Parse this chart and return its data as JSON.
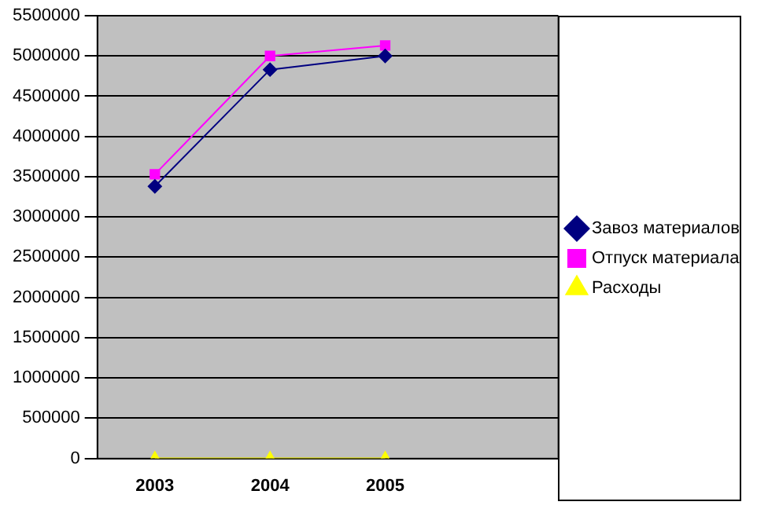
{
  "chart_data": {
    "type": "line",
    "categories": [
      "2003",
      "2004",
      "2005",
      null
    ],
    "series": [
      {
        "name": "Завоз материалов",
        "color": "#000080",
        "marker": "diamond",
        "values": [
          3380000,
          4830000,
          5000000,
          null
        ]
      },
      {
        "name": "Отпуск материала",
        "color": "#ff00ff",
        "marker": "square",
        "values": [
          3530000,
          5000000,
          5130000,
          null
        ]
      },
      {
        "name": "Расходы",
        "color": "#ffff00",
        "marker": "triangle",
        "values": [
          0,
          0,
          0,
          null
        ]
      }
    ],
    "ylim": [
      0,
      5500000
    ],
    "yticks": [
      0,
      500000,
      1000000,
      1500000,
      2000000,
      2500000,
      3000000,
      3500000,
      4000000,
      4500000,
      5000000,
      5500000
    ],
    "grid": "y",
    "legend": "right",
    "line_style": "solid"
  }
}
